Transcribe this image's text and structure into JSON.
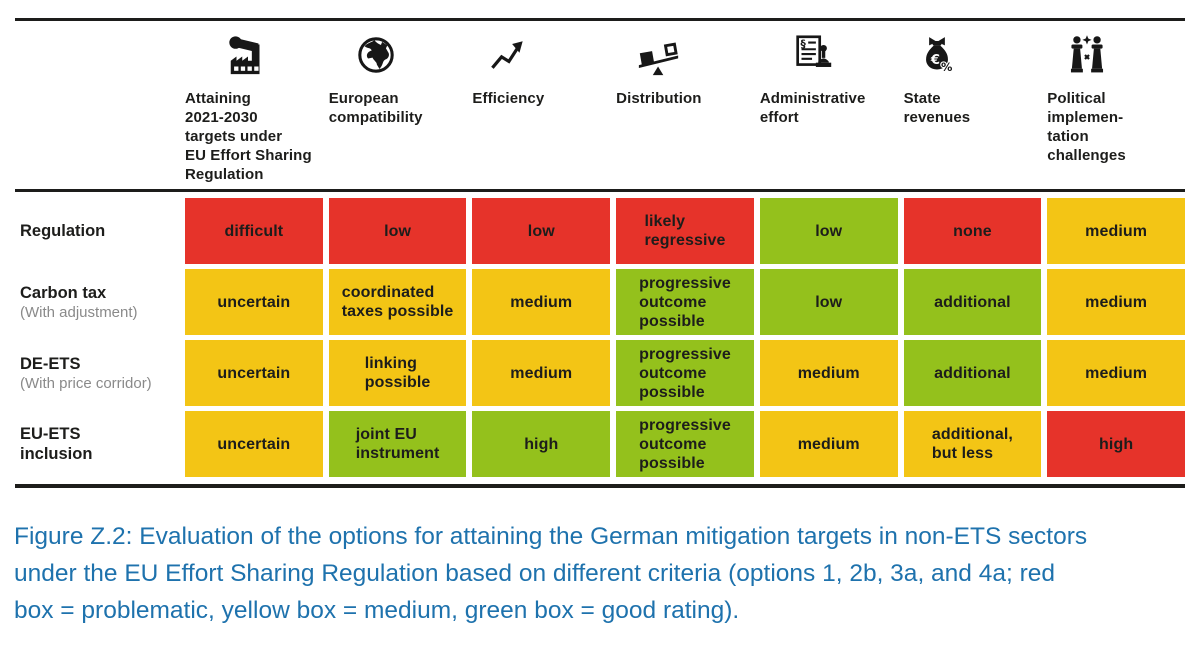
{
  "colors": {
    "red": "#e6332a",
    "yellow": "#f3c515",
    "green": "#94c11c",
    "caption_blue": "#1e72ad"
  },
  "chart_data": {
    "type": "table",
    "title": "Figure Z.2",
    "legend": {
      "red": "problematic",
      "yellow": "medium",
      "green": "good rating"
    },
    "columns": [
      {
        "label": "Attaining\n2021-2030\ntargets under\nEU Effort Sharing\nRegulation",
        "icon": "factory-icon"
      },
      {
        "label": "European\ncompatibility",
        "icon": "globe-icon"
      },
      {
        "label": "Efficiency",
        "icon": "trend-up-icon"
      },
      {
        "label": "Distribution",
        "icon": "balance-icon"
      },
      {
        "label": "Administrative\neffort",
        "icon": "document-stamp-icon"
      },
      {
        "label": "State\nrevenues",
        "icon": "money-bag-icon"
      },
      {
        "label": "Political\nimplemen-\ntation\nchallenges",
        "icon": "debate-podium-icon"
      }
    ],
    "rows": [
      {
        "label": "Regulation",
        "sublabel": "",
        "cells": [
          {
            "text": "difficult",
            "rating": "red"
          },
          {
            "text": "low",
            "rating": "red"
          },
          {
            "text": "low",
            "rating": "red"
          },
          {
            "text": "likely\nregressive",
            "rating": "red"
          },
          {
            "text": "low",
            "rating": "green"
          },
          {
            "text": "none",
            "rating": "red"
          },
          {
            "text": "medium",
            "rating": "yellow"
          }
        ]
      },
      {
        "label": "Carbon tax",
        "sublabel": "(With adjustment)",
        "cells": [
          {
            "text": "uncertain",
            "rating": "yellow"
          },
          {
            "text": "coordinated\ntaxes possible",
            "rating": "yellow"
          },
          {
            "text": "medium",
            "rating": "yellow"
          },
          {
            "text": "progressive\noutcome\npossible",
            "rating": "green"
          },
          {
            "text": "low",
            "rating": "green"
          },
          {
            "text": "additional",
            "rating": "green"
          },
          {
            "text": "medium",
            "rating": "yellow"
          }
        ]
      },
      {
        "label": "DE-ETS",
        "sublabel": "(With price corridor)",
        "cells": [
          {
            "text": "uncertain",
            "rating": "yellow"
          },
          {
            "text": "linking\npossible",
            "rating": "yellow"
          },
          {
            "text": "medium",
            "rating": "yellow"
          },
          {
            "text": "progressive\noutcome\npossible",
            "rating": "green"
          },
          {
            "text": "medium",
            "rating": "yellow"
          },
          {
            "text": "additional",
            "rating": "green"
          },
          {
            "text": "medium",
            "rating": "yellow"
          }
        ]
      },
      {
        "label": "EU-ETS\ninclusion",
        "sublabel": "",
        "cells": [
          {
            "text": "uncertain",
            "rating": "yellow"
          },
          {
            "text": "joint EU\ninstrument",
            "rating": "green"
          },
          {
            "text": "high",
            "rating": "green"
          },
          {
            "text": "progressive\noutcome\npossible",
            "rating": "green"
          },
          {
            "text": "medium",
            "rating": "yellow"
          },
          {
            "text": "additional,\nbut less",
            "rating": "yellow"
          },
          {
            "text": "high",
            "rating": "red"
          }
        ]
      }
    ]
  },
  "caption": {
    "lines": [
      "Figure Z.2: Evaluation of the options for attaining the German mitigation targets in non-ETS sectors",
      "under the EU Effort Sharing Regulation based on different criteria (options 1, 2b, 3a, and 4a; red",
      "box = problematic, yellow box = medium, green box = good rating)."
    ]
  }
}
